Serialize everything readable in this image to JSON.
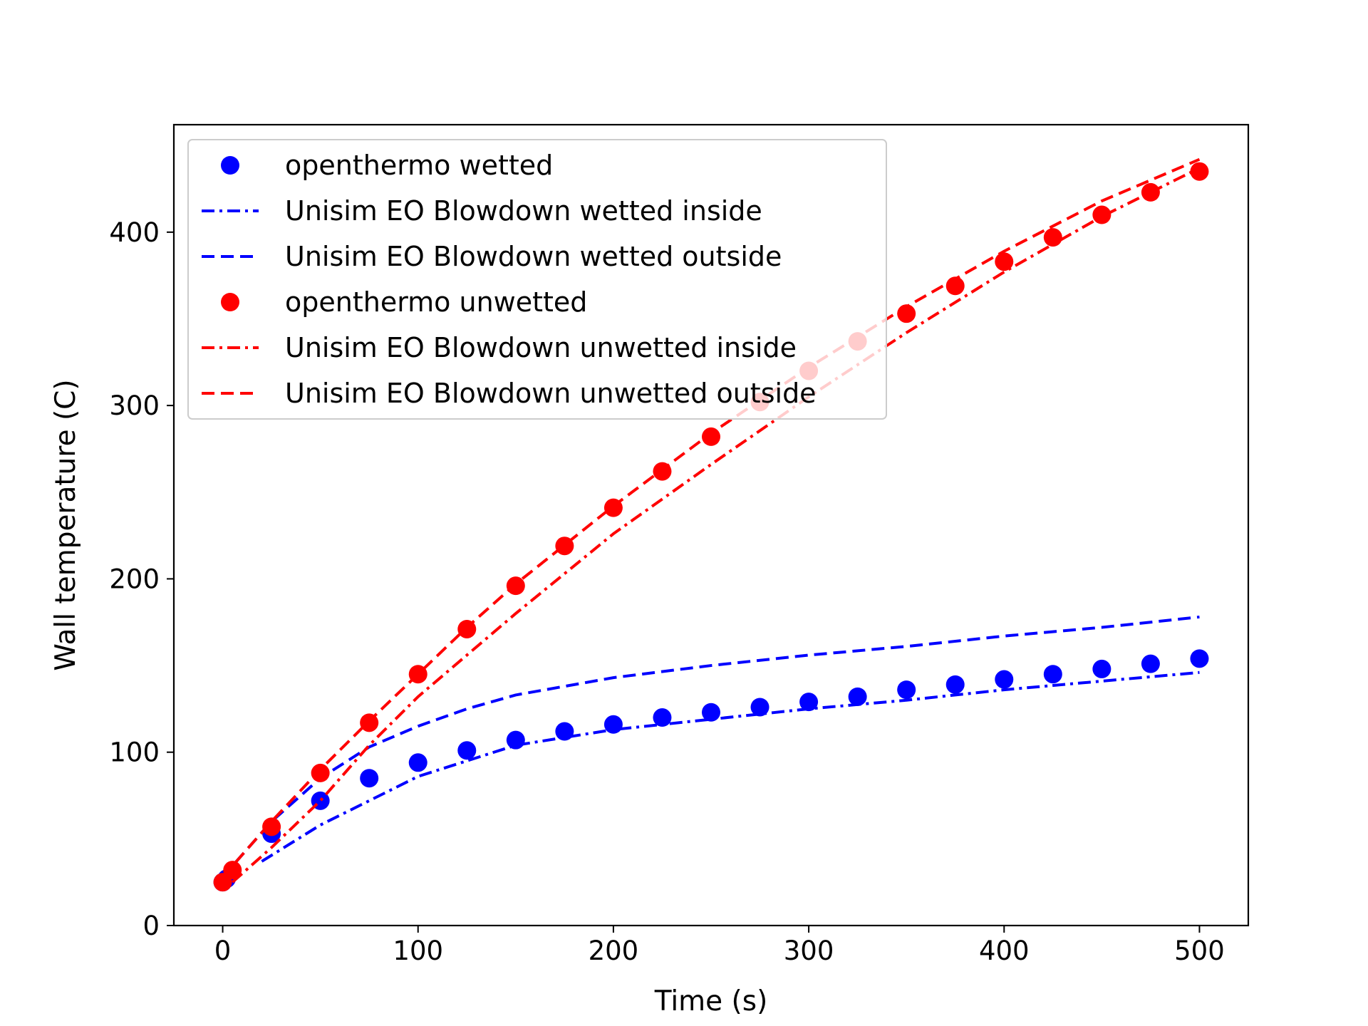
{
  "chart_data": {
    "type": "line",
    "xlabel": "Time (s)",
    "ylabel": "Wall temperature (C)",
    "xlim": [
      -25,
      525
    ],
    "ylim": [
      0,
      462
    ],
    "xticks": [
      0,
      100,
      200,
      300,
      400,
      500
    ],
    "yticks": [
      0,
      100,
      200,
      300,
      400
    ],
    "grid": false,
    "legend_position": "top-left",
    "series": [
      {
        "name": "openthermo wetted",
        "style": "markers",
        "color": "#0000ff",
        "x": [
          0,
          2,
          25,
          50,
          75,
          100,
          125,
          150,
          175,
          200,
          225,
          250,
          275,
          300,
          325,
          350,
          375,
          400,
          425,
          450,
          475,
          500
        ],
        "y": [
          25,
          27,
          53,
          72,
          85,
          94,
          101,
          107,
          112,
          116,
          120,
          123,
          126,
          129,
          132,
          136,
          139,
          142,
          145,
          148,
          151,
          154
        ]
      },
      {
        "name": "Unisim EO Blowdown wetted inside",
        "style": "dashdot",
        "color": "#0000ff",
        "x": [
          20,
          50,
          75,
          100,
          150,
          200,
          250,
          300,
          350,
          400,
          450,
          500
        ],
        "y": [
          37,
          58,
          72,
          86,
          104,
          113,
          119,
          125,
          130,
          136,
          141,
          146
        ]
      },
      {
        "name": "Unisim EO Blowdown wetted outside",
        "style": "dashed",
        "color": "#0000ff",
        "x": [
          0,
          25,
          50,
          75,
          100,
          125,
          150,
          200,
          250,
          300,
          350,
          400,
          450,
          500
        ],
        "y": [
          28,
          60,
          85,
          103,
          115,
          125,
          133,
          143,
          150,
          156,
          161,
          167,
          172,
          178
        ]
      },
      {
        "name": "openthermo unwetted",
        "style": "markers",
        "color": "#ff0000",
        "x": [
          0,
          5,
          25,
          50,
          75,
          100,
          125,
          150,
          175,
          200,
          225,
          250,
          275,
          300,
          325,
          350,
          375,
          400,
          425,
          450,
          475,
          500
        ],
        "y": [
          25,
          32,
          57,
          88,
          117,
          145,
          171,
          196,
          219,
          241,
          262,
          282,
          302,
          320,
          337,
          353,
          369,
          383,
          397,
          410,
          423,
          435
        ]
      },
      {
        "name": "Unisim EO Blowdown unwetted inside",
        "style": "dashdot",
        "color": "#ff0000",
        "x": [
          5,
          25,
          50,
          75,
          100,
          150,
          200,
          250,
          300,
          350,
          400,
          450,
          500
        ],
        "y": [
          25,
          45,
          72,
          104,
          132,
          180,
          226,
          266,
          305,
          342,
          377,
          409,
          437
        ]
      },
      {
        "name": "Unisim EO Blowdown unwetted outside",
        "style": "dashed",
        "color": "#ff0000",
        "x": [
          0,
          25,
          50,
          75,
          100,
          125,
          150,
          200,
          250,
          300,
          350,
          400,
          450,
          500
        ],
        "y": [
          28,
          60,
          90,
          118,
          145,
          172,
          197,
          242,
          284,
          322,
          357,
          389,
          418,
          442
        ]
      }
    ]
  }
}
